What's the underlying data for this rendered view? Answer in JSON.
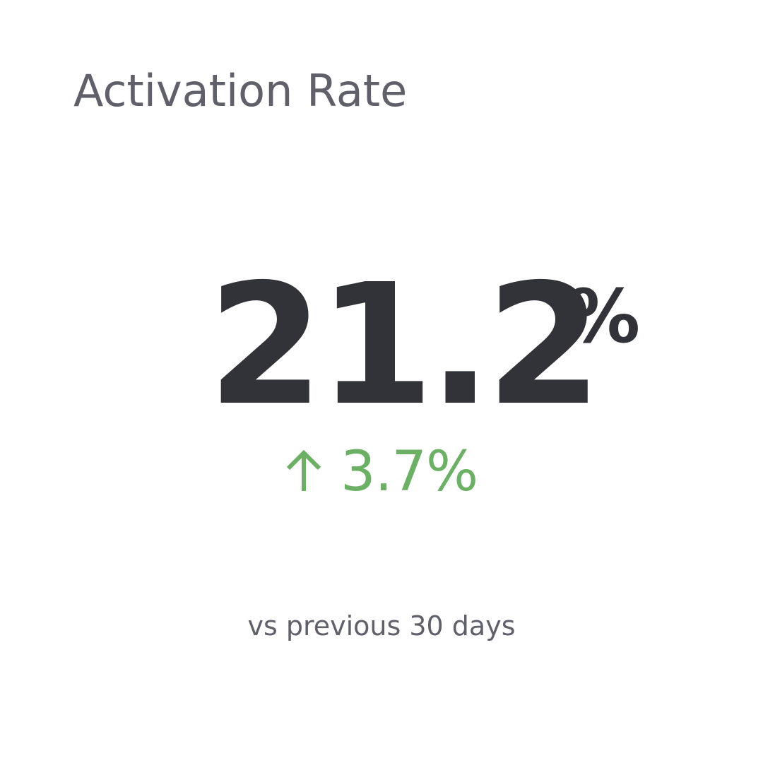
{
  "kpi": {
    "title": "Activation Rate",
    "value": "21.2",
    "unit": "%",
    "change": {
      "direction": "up",
      "icon": "arrow-up-icon",
      "value": "3.7%",
      "color": "#6bb064"
    },
    "comparison_label": "vs previous 30 days"
  },
  "colors": {
    "title": "#5f6069",
    "value": "#323338",
    "caption": "#5f6069",
    "positive": "#6bb064",
    "background": "#ffffff"
  }
}
